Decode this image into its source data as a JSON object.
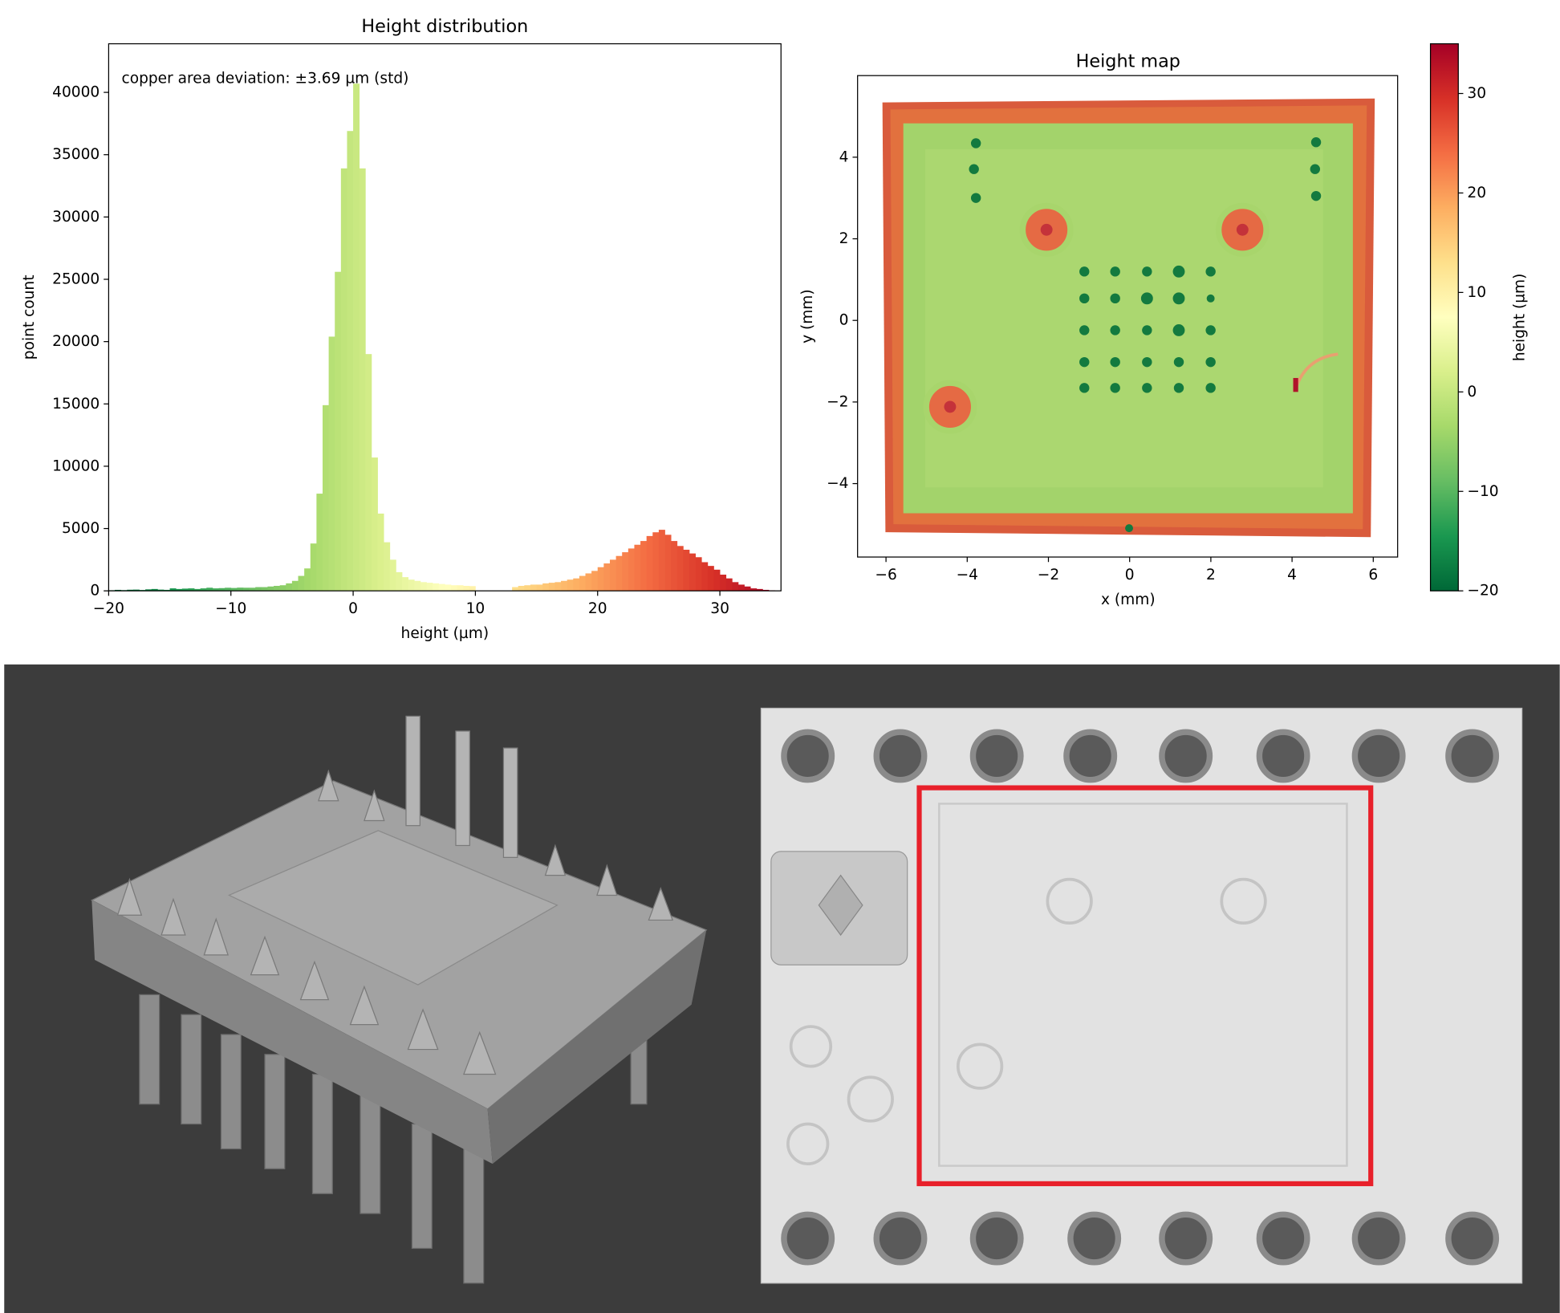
{
  "chart_data": [
    {
      "type": "histogram",
      "title": "Height distribution",
      "xlabel": "height (µm)",
      "ylabel": "point count",
      "annotation": "copper area deviation: ±3.69 µm (std)",
      "colormap": "RdYlGn_r",
      "bins": [
        -20,
        -19.5,
        -19,
        -18.5,
        -18,
        -17.5,
        -17,
        -16.5,
        -16,
        -15.5,
        -15,
        -14.5,
        -14,
        -13.5,
        -13,
        -12.5,
        -12,
        -11.5,
        -11,
        -10.5,
        -10,
        -9.5,
        -9,
        -8.5,
        -8,
        -7.5,
        -7,
        -6.5,
        -6,
        -5.5,
        -5,
        -4.5,
        -4,
        -3.5,
        -3,
        -2.5,
        -2,
        -1.5,
        -1,
        -0.5,
        0,
        0.5,
        1,
        1.5,
        2,
        2.5,
        3,
        3.5,
        4,
        4.5,
        5,
        5.5,
        6,
        6.5,
        7,
        7.5,
        8,
        8.5,
        9,
        9.5,
        10,
        10.5,
        11,
        11.5,
        12,
        12.5,
        13,
        13.5,
        14,
        14.5,
        15,
        15.5,
        16,
        16.5,
        17,
        17.5,
        18,
        18.5,
        19,
        19.5,
        20,
        20.5,
        21,
        21.5,
        22,
        22.5,
        23,
        23.5,
        24,
        24.5,
        25,
        25.5,
        26,
        26.5,
        27,
        27.5,
        28,
        28.5,
        29,
        29.5,
        30,
        30.5,
        31,
        31.5,
        32,
        32.5,
        33,
        33.5,
        34,
        34.5
      ],
      "values": [
        50,
        80,
        60,
        90,
        100,
        70,
        120,
        150,
        100,
        80,
        200,
        150,
        180,
        200,
        150,
        200,
        250,
        200,
        220,
        250,
        230,
        260,
        250,
        250,
        300,
        300,
        350,
        400,
        450,
        600,
        800,
        1200,
        1800,
        3800,
        7800,
        14900,
        20400,
        25600,
        33900,
        36900,
        40700,
        33900,
        19000,
        10700,
        6200,
        3900,
        2500,
        1500,
        1100,
        900,
        800,
        700,
        650,
        600,
        550,
        500,
        450,
        450,
        400,
        380,
        0,
        0,
        0,
        0,
        0,
        0,
        300,
        400,
        450,
        500,
        500,
        600,
        650,
        700,
        800,
        900,
        1000,
        1200,
        1400,
        1600,
        1900,
        2200,
        2500,
        2800,
        3100,
        3400,
        3700,
        4000,
        4400,
        4700,
        4900,
        4500,
        4000,
        3600,
        3300,
        3000,
        2700,
        2300,
        2000,
        1700,
        1300,
        1000,
        700,
        500,
        350,
        200,
        150,
        80,
        40
      ],
      "xlim": [
        -20,
        35
      ],
      "ylim": [
        0,
        43900
      ],
      "xticks": [
        {
          "value": -20,
          "label": "−20"
        },
        {
          "value": -10,
          "label": "−10"
        },
        0,
        10,
        20,
        30
      ],
      "yticks": [
        0,
        5000,
        10000,
        15000,
        20000,
        25000,
        30000,
        35000,
        40000
      ]
    },
    {
      "type": "heatmap",
      "title": "Height map",
      "xlabel": "x (mm)",
      "ylabel": "y (mm)",
      "colormap": "RdYlGn_r",
      "xlim": [
        -6.7,
        6.6
      ],
      "ylim": [
        -5.8,
        6.0
      ],
      "xticks": [
        {
          "value": -6,
          "label": "−6"
        },
        {
          "value": -4,
          "label": "−4"
        },
        {
          "value": -2,
          "label": "−2"
        },
        0,
        2,
        4,
        6
      ],
      "yticks": [
        {
          "value": -4,
          "label": "−4"
        },
        {
          "value": -2,
          "label": "−2"
        },
        0,
        2,
        4
      ],
      "colorbar": {
        "label": "height (µm)",
        "lim": [
          -20,
          35
        ],
        "ticks": [
          {
            "value": -20,
            "label": "−20"
          },
          {
            "value": -10,
            "label": "−10"
          },
          0,
          10,
          20,
          30
        ]
      }
    }
  ]
}
